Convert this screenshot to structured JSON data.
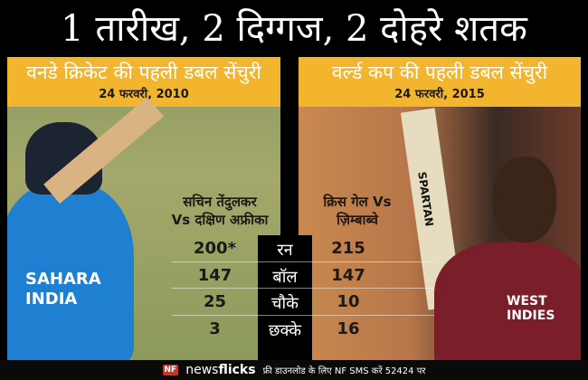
{
  "title": "1 तारीख, 2 दिग्गज, 2 दोहरे शतक",
  "left": {
    "heading": "वनडे क्रिकेट की पहली डबल सेंचुरी",
    "date": "24 फरवरी, 2010",
    "name": "सचिन तेंदुलकर",
    "opponent": "Vs दक्षिण अफ्रीका",
    "jersey": "SAHARA INDIA"
  },
  "right": {
    "heading": "वर्ल्ड कप की पहली डबल सेंचुरी",
    "date": "24 फरवरी, 2015",
    "name": "क्रिस गेल Vs",
    "opponent": "ज़िम्बाब्वे",
    "jersey": "WEST INDIES",
    "bat": "SPARTAN"
  },
  "stats": [
    {
      "label": "रन",
      "left": "200*",
      "right": "215"
    },
    {
      "label": "बॉल",
      "left": "147",
      "right": "147"
    },
    {
      "label": "चौके",
      "left": "25",
      "right": "10"
    },
    {
      "label": "छक्के",
      "left": "3",
      "right": "16"
    }
  ],
  "footer": {
    "logo": "NF",
    "brand_a": "news",
    "brand_b": "flicks",
    "text": "फ्री डाउनलोड के लिए NF SMS करें 52424 पर"
  },
  "colors": {
    "header": "#f2b52d",
    "background": "#000000"
  }
}
